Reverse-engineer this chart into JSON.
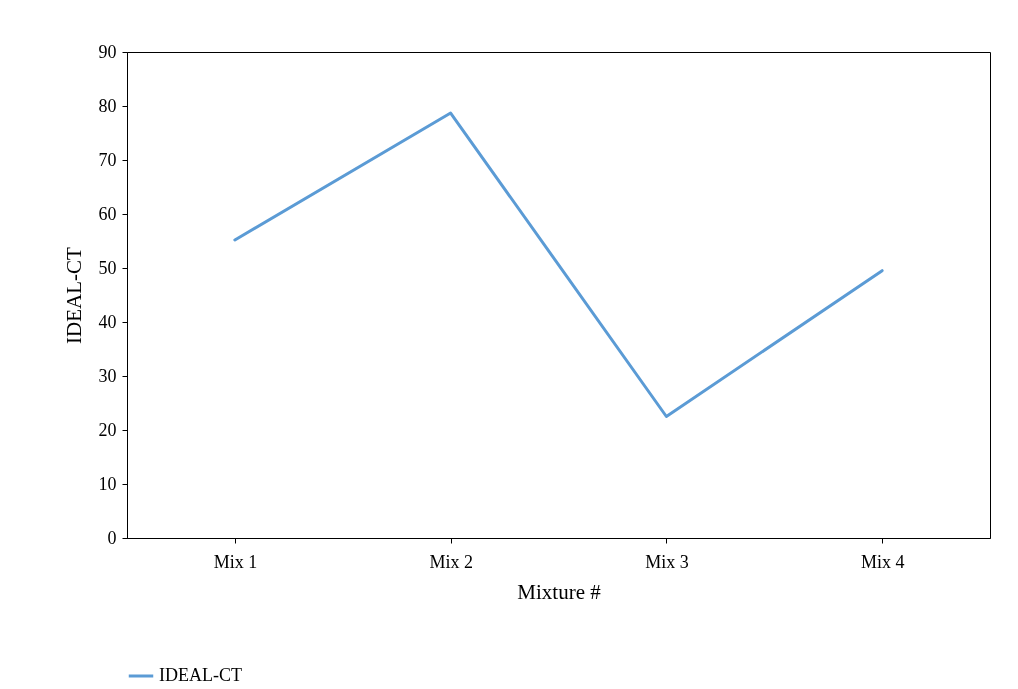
{
  "chart_data": {
    "type": "line",
    "xlabel": "Mixture #",
    "ylabel": "IDEAL-CT",
    "categories": [
      "Mix 1",
      "Mix 2",
      "Mix 3",
      "Mix 4"
    ],
    "series": [
      {
        "name": "IDEAL-CT",
        "color": "#5b9bd5",
        "values": [
          55.2,
          78.7,
          22.5,
          49.5
        ]
      }
    ],
    "ylim": [
      0,
      90
    ],
    "yticks": [
      0,
      10,
      20,
      30,
      40,
      50,
      60,
      70,
      80,
      90
    ],
    "grid": false,
    "legend": "bottom",
    "marker": "none",
    "line_style": "solid"
  }
}
